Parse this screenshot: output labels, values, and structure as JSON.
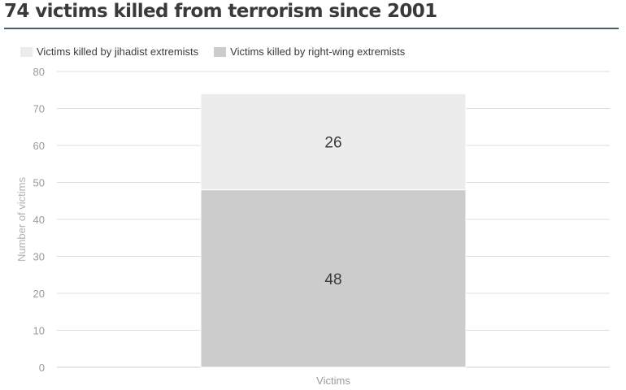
{
  "chart_data": {
    "type": "bar",
    "stacked": true,
    "title": "74 victims killed from terrorism since 2001",
    "categories": [
      "Victims"
    ],
    "series": [
      {
        "name": "Victims killed by right-wing extremists",
        "values": [
          48
        ],
        "color": "#cccccc"
      },
      {
        "name": "Victims killed by jihadist extremists",
        "values": [
          26
        ],
        "color": "#ececec"
      }
    ],
    "legend_order": [
      "Victims killed by jihadist extremists",
      "Victims killed by right-wing extremists"
    ],
    "ylabel": "Number of victims",
    "xlabel": "",
    "ylim": [
      0,
      80
    ],
    "yticks": [
      0,
      10,
      20,
      30,
      40,
      50,
      60,
      70,
      80
    ],
    "grid": true,
    "legend_position": "top-left"
  },
  "colors": {
    "title": "#3a3a3a",
    "title_rule": "#4a5e6a",
    "gridline": "#dddddd",
    "tick_text": "#9a9a9a"
  }
}
